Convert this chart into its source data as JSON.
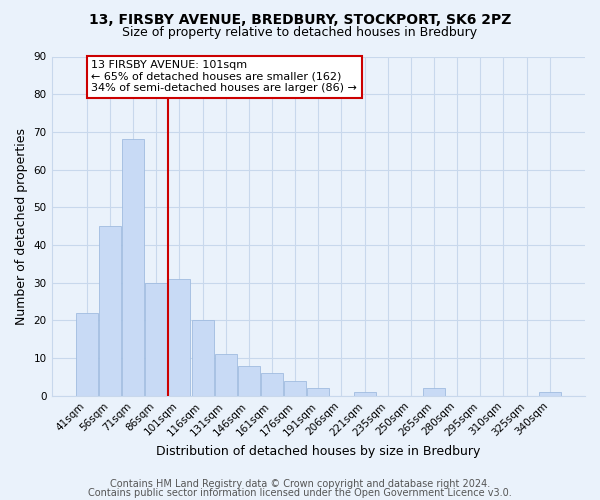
{
  "title_line1": "13, FIRSBY AVENUE, BREDBURY, STOCKPORT, SK6 2PZ",
  "title_line2": "Size of property relative to detached houses in Bredbury",
  "xlabel": "Distribution of detached houses by size in Bredbury",
  "ylabel": "Number of detached properties",
  "bar_labels": [
    "41sqm",
    "56sqm",
    "71sqm",
    "86sqm",
    "101sqm",
    "116sqm",
    "131sqm",
    "146sqm",
    "161sqm",
    "176sqm",
    "191sqm",
    "206sqm",
    "221sqm",
    "235sqm",
    "250sqm",
    "265sqm",
    "280sqm",
    "295sqm",
    "310sqm",
    "325sqm",
    "340sqm"
  ],
  "bar_heights": [
    22,
    45,
    68,
    30,
    31,
    20,
    11,
    8,
    6,
    4,
    2,
    0,
    1,
    0,
    0,
    2,
    0,
    0,
    0,
    0,
    1
  ],
  "bar_color": "#c8daf5",
  "bar_edge_color": "#a0bce0",
  "vline_color": "#cc0000",
  "annotation_text": "13 FIRSBY AVENUE: 101sqm\n← 65% of detached houses are smaller (162)\n34% of semi-detached houses are larger (86) →",
  "annotation_box_color": "#ffffff",
  "annotation_box_edge": "#cc0000",
  "annotation_fontsize": 8.0,
  "ylim": [
    0,
    90
  ],
  "yticks": [
    0,
    10,
    20,
    30,
    40,
    50,
    60,
    70,
    80,
    90
  ],
  "grid_color": "#c8d8ec",
  "background_color": "#eaf2fb",
  "footer_line1": "Contains HM Land Registry data © Crown copyright and database right 2024.",
  "footer_line2": "Contains public sector information licensed under the Open Government Licence v3.0.",
  "footer_fontsize": 7.0,
  "title_fontsize1": 10,
  "title_fontsize2": 9
}
